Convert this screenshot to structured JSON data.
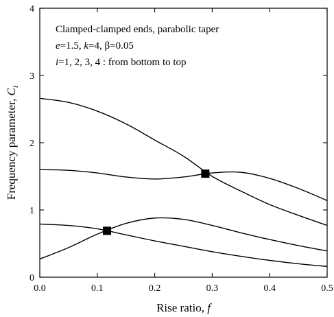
{
  "chart_data": {
    "type": "line",
    "title": "",
    "xlabel": {
      "text": "Rise ratio, ",
      "var": "f"
    },
    "ylabel": {
      "text": "Frequency parameter, ",
      "var": "C",
      "sub": "i"
    },
    "xlim": [
      0,
      0.5
    ],
    "ylim": [
      0,
      4
    ],
    "xticks": [
      0.0,
      0.1,
      0.2,
      0.3,
      0.4,
      0.5
    ],
    "xtick_labels": [
      "0.0",
      "0.1",
      "0.2",
      "0.3",
      "0.4",
      "0.5"
    ],
    "yticks": [
      0,
      1,
      2,
      3,
      4
    ],
    "ytick_labels": [
      "0",
      "1",
      "2",
      "3",
      "4"
    ],
    "grid": false,
    "annotations": [
      "Clamped-clamped ends, parabolic taper",
      "e=1.5, k=4, β=0.05",
      "i=1, 2, 3, 4 : from bottom to top"
    ],
    "series": [
      {
        "x": [
          0,
          0.05,
          0.1,
          0.15,
          0.2,
          0.25,
          0.3,
          0.35,
          0.4,
          0.45,
          0.5
        ],
        "y": [
          0.79,
          0.77,
          0.72,
          0.63,
          0.54,
          0.46,
          0.38,
          0.31,
          0.25,
          0.2,
          0.16
        ]
      },
      {
        "x": [
          0,
          0.05,
          0.1,
          0.15,
          0.2,
          0.25,
          0.3,
          0.35,
          0.4,
          0.45,
          0.5
        ],
        "y": [
          0.27,
          0.44,
          0.64,
          0.8,
          0.88,
          0.86,
          0.77,
          0.66,
          0.56,
          0.47,
          0.39
        ]
      },
      {
        "x": [
          0,
          0.05,
          0.1,
          0.15,
          0.2,
          0.25,
          0.3,
          0.35,
          0.4,
          0.45,
          0.5
        ],
        "y": [
          1.6,
          1.59,
          1.55,
          1.49,
          1.46,
          1.49,
          1.55,
          1.56,
          1.47,
          1.32,
          1.14
        ]
      },
      {
        "x": [
          0,
          0.05,
          0.1,
          0.15,
          0.2,
          0.25,
          0.3,
          0.35,
          0.4,
          0.45,
          0.5
        ],
        "y": [
          2.66,
          2.6,
          2.47,
          2.28,
          2.04,
          1.8,
          1.5,
          1.28,
          1.08,
          0.92,
          0.77
        ]
      }
    ],
    "markers": [
      {
        "shape": "square",
        "x": 0.117,
        "y": 0.69
      },
      {
        "shape": "square",
        "x": 0.288,
        "y": 1.54
      }
    ],
    "colors": {
      "line": "#000000",
      "marker": "#000000",
      "background": "#ffffff"
    }
  }
}
